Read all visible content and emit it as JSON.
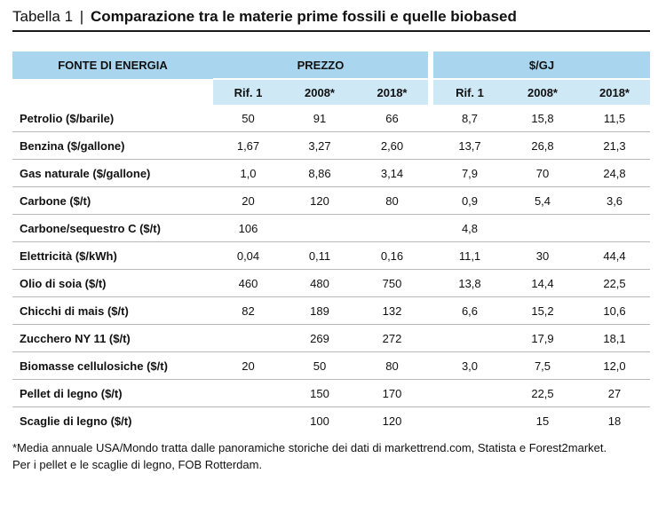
{
  "title": {
    "label": "Tabella 1",
    "separator": "|",
    "text": "Comparazione tra le materie prime fossili e quelle biobased"
  },
  "headers": {
    "source": "FONTE DI ENERGIA",
    "group1": "PREZZO",
    "group2": "$/GJ",
    "sub": [
      "Rif. 1",
      "2008*",
      "2018*",
      "Rif. 1",
      "2008*",
      "2018*"
    ]
  },
  "rows": [
    {
      "name": "Petrolio ($/barile)",
      "p": [
        "50",
        "91",
        "66"
      ],
      "g": [
        "8,7",
        "15,8",
        "11,5"
      ]
    },
    {
      "name": "Benzina ($/gallone)",
      "p": [
        "1,67",
        "3,27",
        "2,60"
      ],
      "g": [
        "13,7",
        "26,8",
        "21,3"
      ]
    },
    {
      "name": "Gas naturale ($/gallone)",
      "p": [
        "1,0",
        "8,86",
        "3,14"
      ],
      "g": [
        "7,9",
        "70",
        "24,8"
      ]
    },
    {
      "name": "Carbone ($/t)",
      "p": [
        "20",
        "120",
        "80"
      ],
      "g": [
        "0,9",
        "5,4",
        "3,6"
      ]
    },
    {
      "name": "Carbone/sequestro C ($/t)",
      "p": [
        "106",
        "",
        ""
      ],
      "g": [
        "4,8",
        "",
        ""
      ]
    },
    {
      "name": "Elettricità ($/kWh)",
      "p": [
        "0,04",
        "0,11",
        "0,16"
      ],
      "g": [
        "11,1",
        "30",
        "44,4"
      ]
    },
    {
      "name": "Olio di soia ($/t)",
      "p": [
        "460",
        "480",
        "750"
      ],
      "g": [
        "13,8",
        "14,4",
        "22,5"
      ]
    },
    {
      "name": "Chicchi di mais ($/t)",
      "p": [
        "82",
        "189",
        "132"
      ],
      "g": [
        "6,6",
        "15,2",
        "10,6"
      ]
    },
    {
      "name": "Zucchero NY 11 ($/t)",
      "p": [
        "",
        "269",
        "272"
      ],
      "g": [
        "",
        "17,9",
        "18,1"
      ]
    },
    {
      "name": "Biomasse cellulosiche ($/t)",
      "p": [
        "20",
        "50",
        "80"
      ],
      "g": [
        "3,0",
        "7,5",
        "12,0"
      ]
    },
    {
      "name": "Pellet di legno ($/t)",
      "p": [
        "",
        "150",
        "170"
      ],
      "g": [
        "",
        "22,5",
        "27"
      ]
    },
    {
      "name": "Scaglie di legno ($/t)",
      "p": [
        "",
        "100",
        "120"
      ],
      "g": [
        "",
        "15",
        "18"
      ]
    }
  ],
  "footnote": [
    "*Media annuale USA/Mondo tratta dalle panoramiche storiche dei dati di markettrend.com, Statista e Forest2market.",
    "Per i pellet e le scaglie di legno, FOB Rotterdam."
  ],
  "colors": {
    "header_dark": "#a9d6ee",
    "header_light": "#cfe8f6",
    "rule": "#1a1a1a",
    "row_border": "#b9b9b9"
  }
}
